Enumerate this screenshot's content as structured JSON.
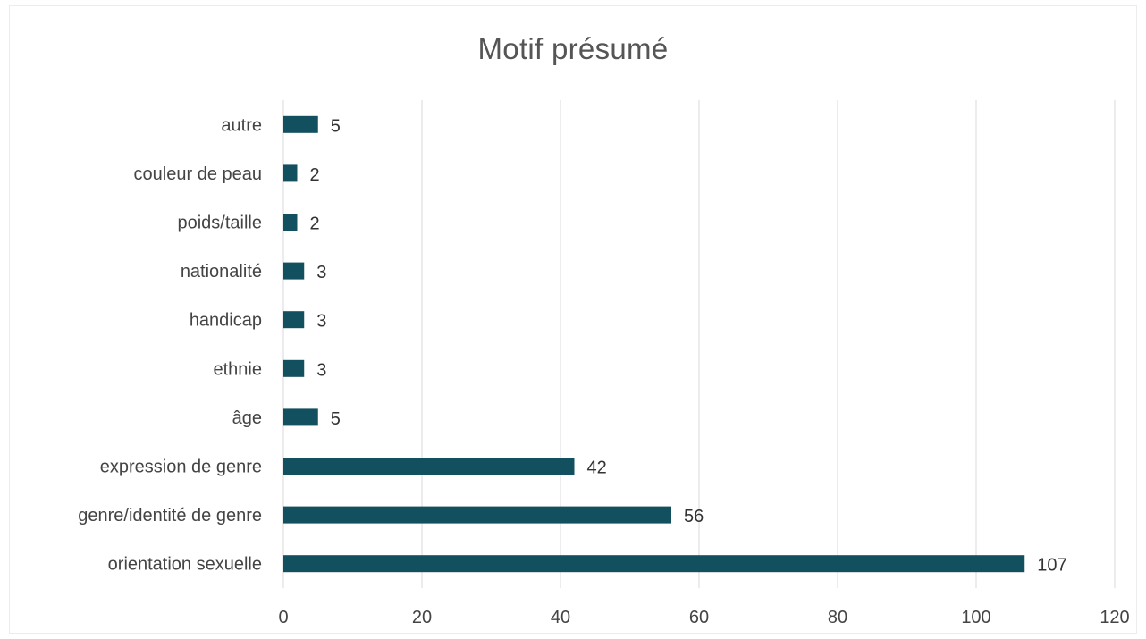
{
  "chart_data": {
    "type": "bar",
    "orientation": "horizontal",
    "title": "Motif présumé",
    "xlabel": "",
    "ylabel": "",
    "categories": [
      "orientation sexuelle",
      "genre/identité de genre",
      "expression de genre",
      "âge",
      "ethnie",
      "handicap",
      "nationalité",
      "poids/taille",
      "couleur de peau",
      "autre"
    ],
    "values": [
      107,
      56,
      42,
      5,
      3,
      3,
      3,
      2,
      2,
      5
    ],
    "xlim": [
      0,
      120
    ],
    "xticks": [
      0,
      20,
      40,
      60,
      80,
      100,
      120
    ],
    "grid": "vertical",
    "legend": "none",
    "data_labels": true,
    "bar_color": "#12505f",
    "grid_color": "#d9d9d9"
  }
}
